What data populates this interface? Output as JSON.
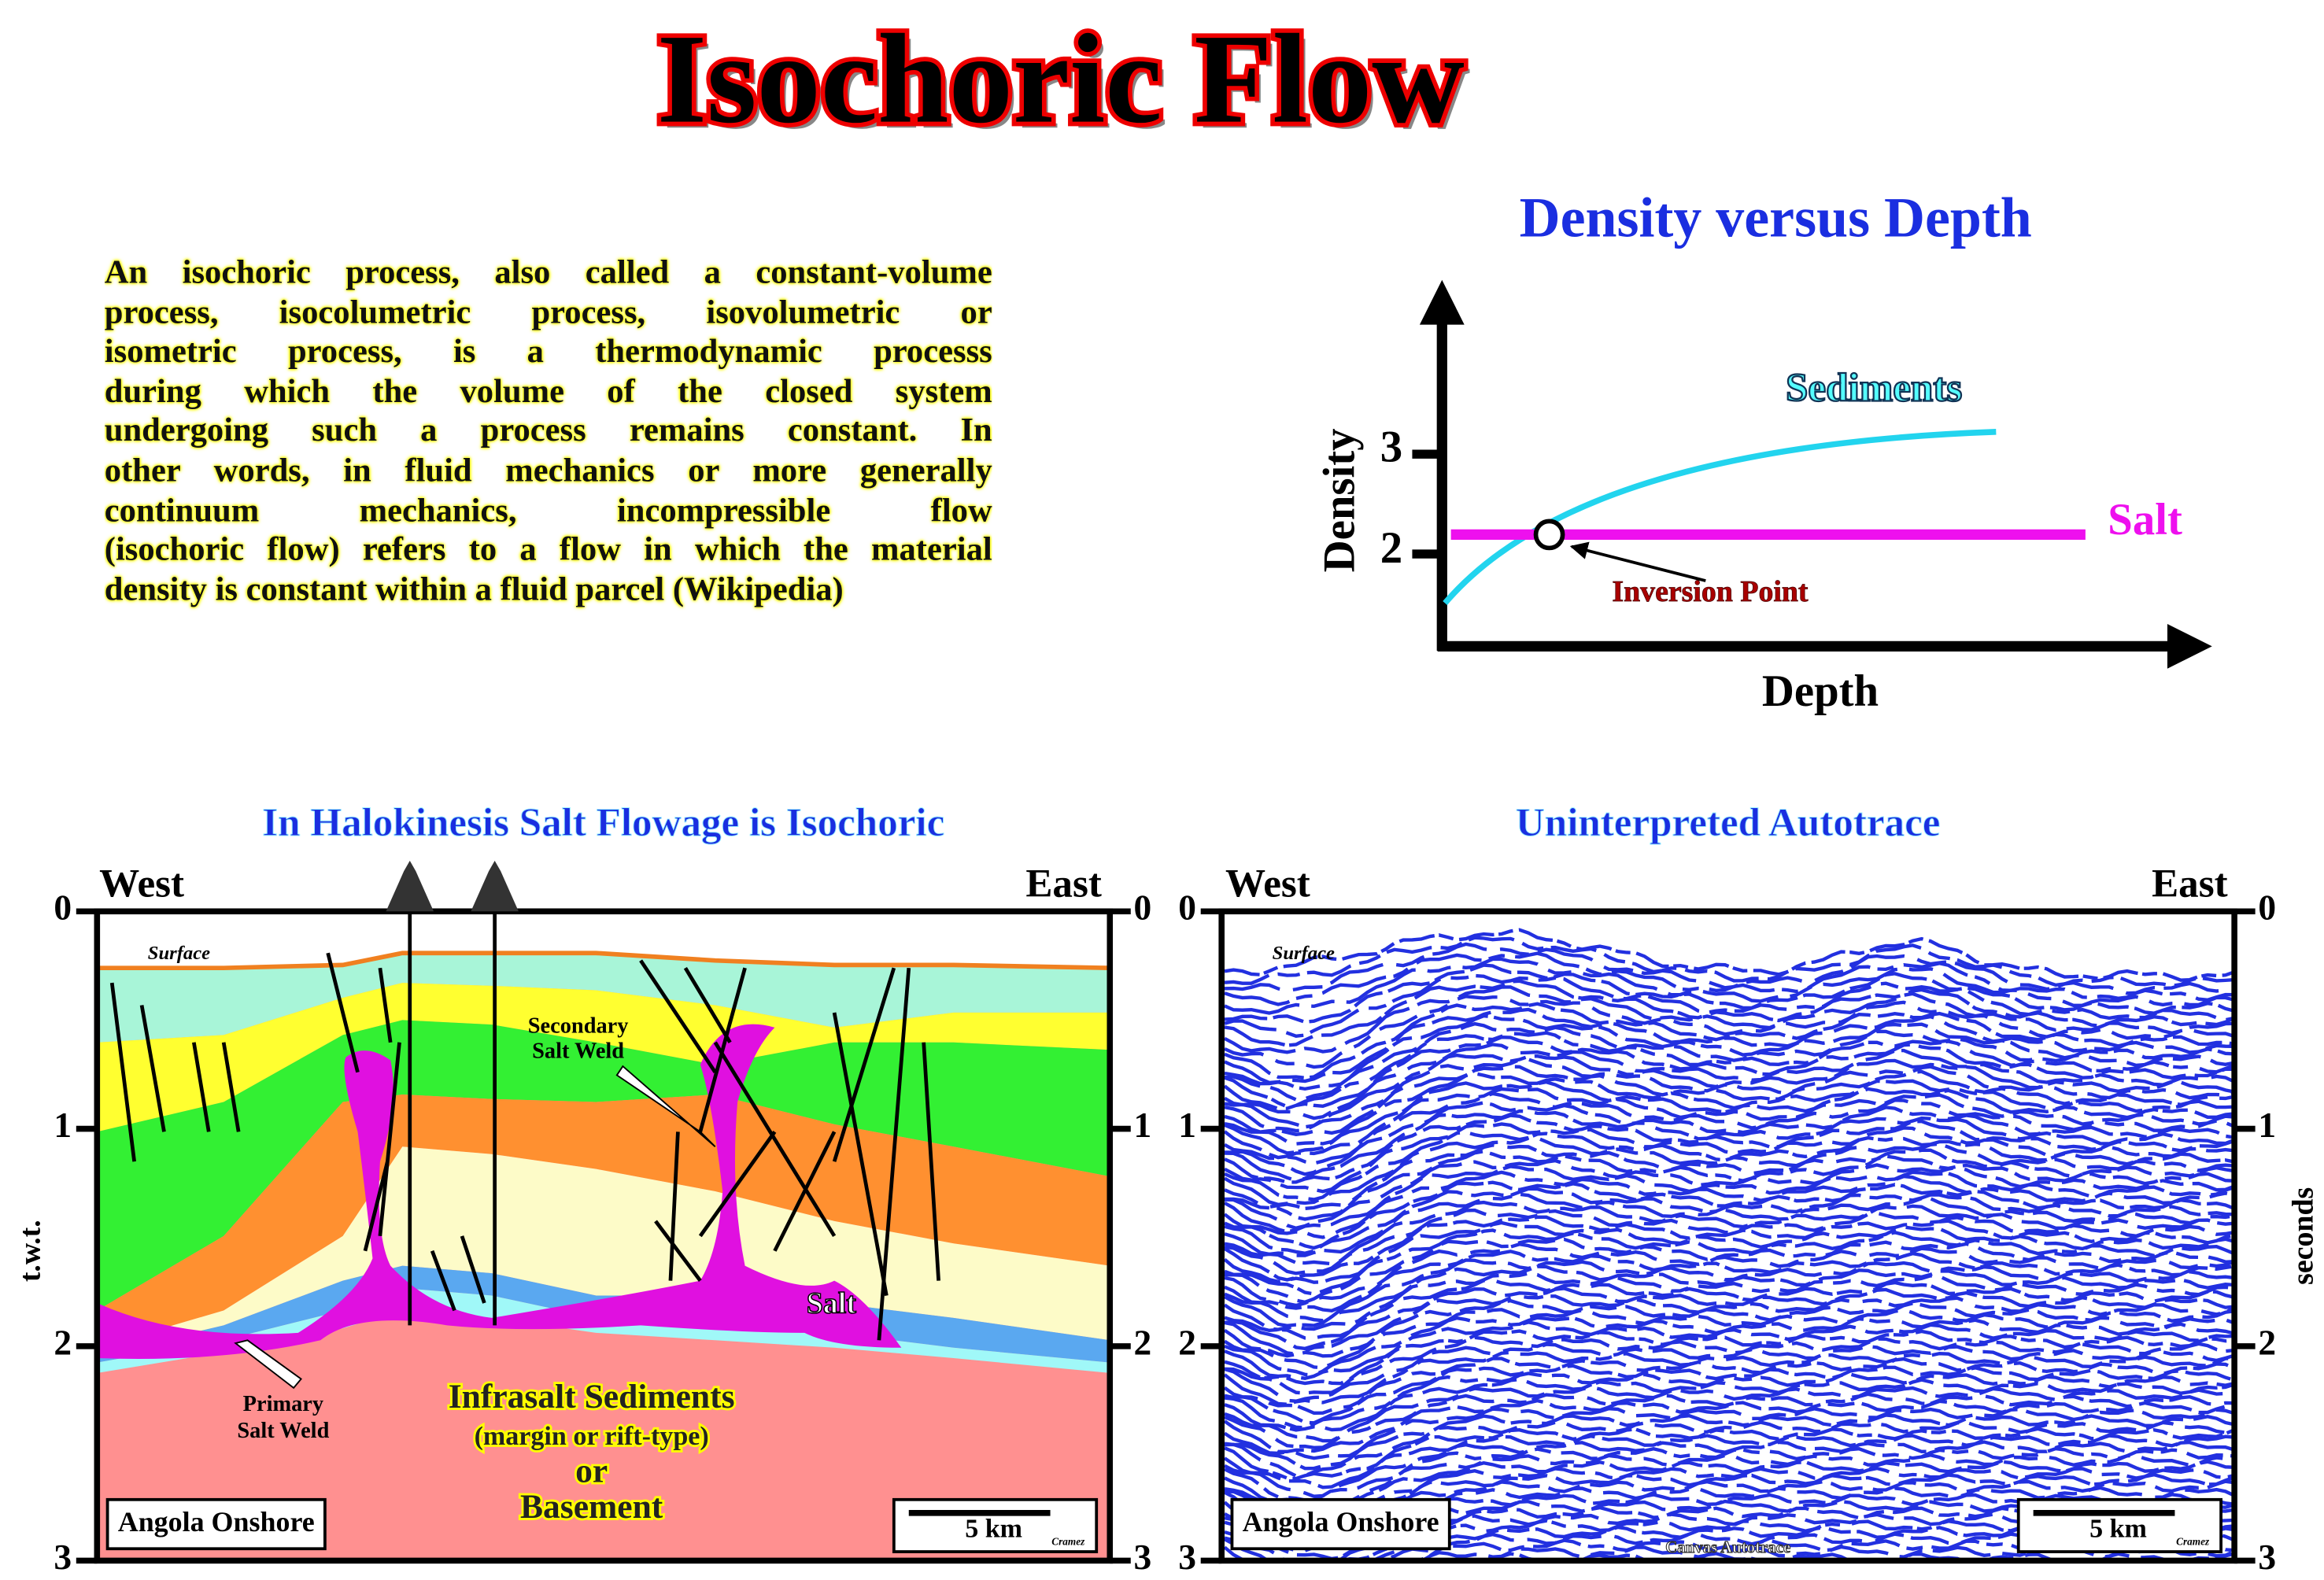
{
  "title": "Isochoric Flow",
  "description_lines": [
    "An isochoric process, also called a constant-volume",
    "process,  isocolumetric process,  isovolumetric or",
    "isometric process, is a thermodynamic processs",
    "during which the volume of the closed system",
    "undergoing such a process remains constant. In",
    "other words, in fluid mechanics or more generally",
    "continuum mechanics, incompressible flow",
    "(isochoric flow) refers to a flow in which the material",
    "density is constant within a fluid parcel (Wikipedia)"
  ],
  "density_chart": {
    "title": "Density versus Depth",
    "y_label": "Density",
    "x_label": "Depth",
    "y_ticks": [
      "3",
      "2"
    ],
    "sediments_label": "Sediments",
    "salt_label": "Salt",
    "annotation": "Inversion Point"
  },
  "left_section": {
    "title": "In Halokinesis Salt Flowage is Isochoric",
    "west": "West",
    "east": "East",
    "axis_label": "t.w.t.",
    "ticks": [
      "0",
      "1",
      "2",
      "3"
    ],
    "surface": "Surface",
    "secondary_weld": [
      "Secondary",
      "Salt Weld"
    ],
    "primary_weld": [
      "Primary",
      "Salt Weld"
    ],
    "salt": "Salt",
    "infrasalt": [
      "Infrasalt Sediments",
      "(margin or rift-type)",
      "or",
      "Basement"
    ],
    "location": "Angola Onshore",
    "scale": "5 km",
    "credit": "Cramez"
  },
  "right_section": {
    "title": "Uninterpreted Autotrace",
    "west": "West",
    "east": "East",
    "axis_label": "seconds",
    "ticks": [
      "0",
      "1",
      "2",
      "3"
    ],
    "surface": "Surface",
    "location": "Angola Onshore",
    "scale": "5 km",
    "credit": "Cramez",
    "software": "Canvas Autotrace"
  }
}
